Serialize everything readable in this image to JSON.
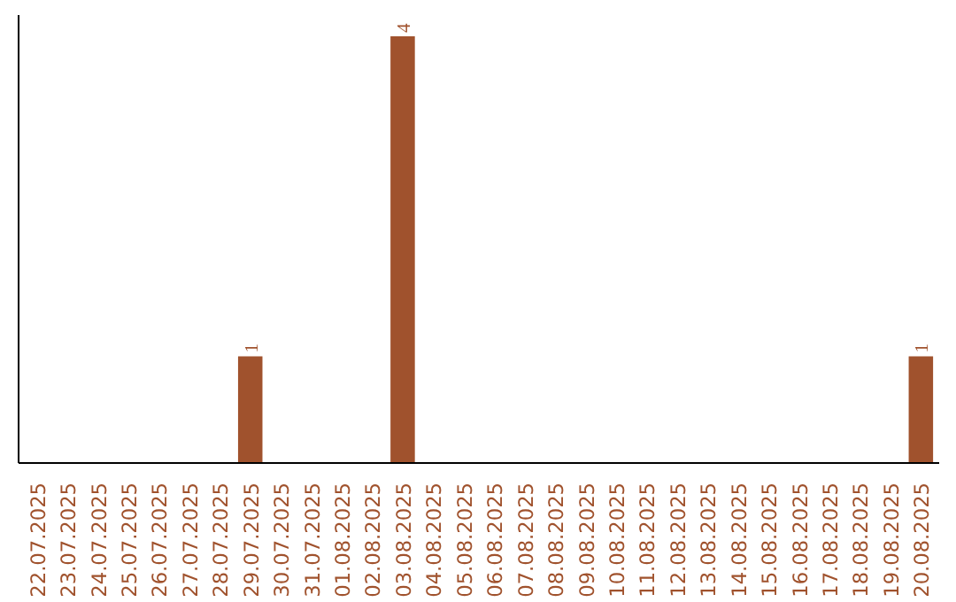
{
  "chart_data": {
    "type": "bar",
    "categories": [
      "22.07.2025",
      "23.07.2025",
      "24.07.2025",
      "25.07.2025",
      "26.07.2025",
      "27.07.2025",
      "28.07.2025",
      "29.07.2025",
      "30.07.2025",
      "31.07.2025",
      "01.08.2025",
      "02.08.2025",
      "03.08.2025",
      "04.08.2025",
      "05.08.2025",
      "06.08.2025",
      "07.08.2025",
      "08.08.2025",
      "09.08.2025",
      "10.08.2025",
      "11.08.2025",
      "12.08.2025",
      "13.08.2025",
      "14.08.2025",
      "15.08.2025",
      "16.08.2025",
      "17.08.2025",
      "18.08.2025",
      "19.08.2025",
      "20.08.2025"
    ],
    "values": [
      0,
      0,
      0,
      0,
      0,
      0,
      0,
      1,
      0,
      0,
      0,
      0,
      4,
      0,
      0,
      0,
      0,
      0,
      0,
      0,
      0,
      0,
      0,
      0,
      0,
      0,
      0,
      0,
      0,
      1
    ],
    "color": "#a0522d",
    "ylim": [
      0,
      4.2
    ],
    "tick_labels": "x",
    "value_labels": [
      null,
      null,
      null,
      null,
      null,
      null,
      null,
      "1",
      null,
      null,
      null,
      null,
      "4",
      null,
      null,
      null,
      null,
      null,
      null,
      null,
      null,
      null,
      null,
      null,
      null,
      null,
      null,
      null,
      null,
      "1"
    ],
    "grid": false
  }
}
